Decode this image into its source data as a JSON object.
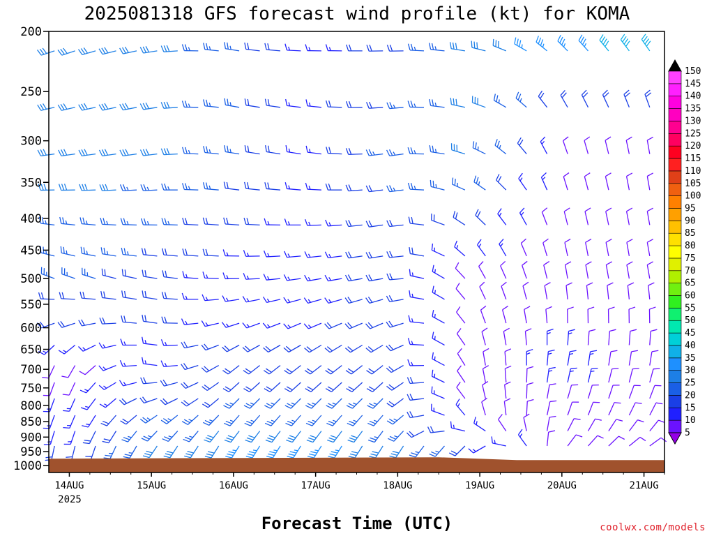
{
  "chart_data": {
    "type": "wind-barb-time-height",
    "title": "2025081318 GFS forecast wind profile (kt) for KOMA",
    "xlabel": "Forecast Time (UTC)",
    "ylabel": "",
    "credit": "coolwx.com/models",
    "y_axis": {
      "unit": "hPa",
      "scale": "log-pressure",
      "range": [
        200,
        1000
      ],
      "ticks": [
        "200",
        "250",
        "300",
        "350",
        "400",
        "450",
        "500",
        "550",
        "600",
        "650",
        "700",
        "750",
        "800",
        "850",
        "900",
        "950",
        "1000"
      ]
    },
    "x_axis": {
      "ticks": [
        "14AUG",
        "15AUG",
        "16AUG",
        "17AUG",
        "18AUG",
        "19AUG",
        "20AUG",
        "21AUG"
      ],
      "year_label": "2025",
      "range_days": [
        13.75,
        21.25
      ]
    },
    "colorbar": {
      "unit": "kt",
      "levels": [
        "5",
        "10",
        "15",
        "20",
        "25",
        "30",
        "35",
        "40",
        "45",
        "50",
        "55",
        "60",
        "65",
        "70",
        "75",
        "80",
        "85",
        "90",
        "95",
        "100",
        "105",
        "110",
        "115",
        "120",
        "125",
        "130",
        "135",
        "140",
        "145",
        "150"
      ],
      "colors": [
        "#9400e6",
        "#6b12ff",
        "#2020ff",
        "#1a3fe6",
        "#1a5fe6",
        "#1d7fe6",
        "#1e90ff",
        "#10b0e8",
        "#00d0d8",
        "#00e8b0",
        "#10f070",
        "#30f020",
        "#70f010",
        "#b0f000",
        "#e0f000",
        "#ffff00",
        "#ffe000",
        "#ffc000",
        "#ffa000",
        "#ff8000",
        "#f06010",
        "#e04018",
        "#ff2020",
        "#ff0020",
        "#ff0060",
        "#ff0090",
        "#ff00c0",
        "#ff00e0",
        "#ff20ff",
        "#ff40ff"
      ]
    },
    "terrain_color": "#a0522d",
    "surface_pressure_hPa": 975,
    "wind_profile_samples": [
      {
        "time": "14AUG00",
        "levels": [
          {
            "p": 200,
            "dir_deg": 250,
            "speed_kt": 30
          },
          {
            "p": 300,
            "dir_deg": 260,
            "speed_kt": 30
          },
          {
            "p": 500,
            "dir_deg": 290,
            "speed_kt": 25
          },
          {
            "p": 700,
            "dir_deg": 200,
            "speed_kt": 10
          },
          {
            "p": 850,
            "dir_deg": 200,
            "speed_kt": 15
          },
          {
            "p": 950,
            "dir_deg": 190,
            "speed_kt": 20
          }
        ]
      },
      {
        "time": "15AUG00",
        "levels": [
          {
            "p": 200,
            "dir_deg": 260,
            "speed_kt": 30
          },
          {
            "p": 300,
            "dir_deg": 260,
            "speed_kt": 30
          },
          {
            "p": 500,
            "dir_deg": 280,
            "speed_kt": 20
          },
          {
            "p": 700,
            "dir_deg": 280,
            "speed_kt": 15
          },
          {
            "p": 850,
            "dir_deg": 230,
            "speed_kt": 25
          },
          {
            "p": 950,
            "dir_deg": 210,
            "speed_kt": 30
          }
        ]
      },
      {
        "time": "16AUG00",
        "levels": [
          {
            "p": 200,
            "dir_deg": 280,
            "speed_kt": 25
          },
          {
            "p": 300,
            "dir_deg": 280,
            "speed_kt": 25
          },
          {
            "p": 500,
            "dir_deg": 270,
            "speed_kt": 15
          },
          {
            "p": 700,
            "dir_deg": 230,
            "speed_kt": 20
          },
          {
            "p": 850,
            "dir_deg": 220,
            "speed_kt": 25
          },
          {
            "p": 950,
            "dir_deg": 210,
            "speed_kt": 35
          }
        ]
      },
      {
        "time": "17AUG00",
        "levels": [
          {
            "p": 200,
            "dir_deg": 270,
            "speed_kt": 15
          },
          {
            "p": 300,
            "dir_deg": 280,
            "speed_kt": 15
          },
          {
            "p": 500,
            "dir_deg": 260,
            "speed_kt": 15
          },
          {
            "p": 700,
            "dir_deg": 230,
            "speed_kt": 20
          },
          {
            "p": 850,
            "dir_deg": 220,
            "speed_kt": 25
          },
          {
            "p": 950,
            "dir_deg": 210,
            "speed_kt": 40
          }
        ]
      },
      {
        "time": "18AUG00",
        "levels": [
          {
            "p": 200,
            "dir_deg": 270,
            "speed_kt": 20
          },
          {
            "p": 300,
            "dir_deg": 260,
            "speed_kt": 25
          },
          {
            "p": 500,
            "dir_deg": 260,
            "speed_kt": 20
          },
          {
            "p": 700,
            "dir_deg": 230,
            "speed_kt": 20
          },
          {
            "p": 850,
            "dir_deg": 220,
            "speed_kt": 25
          },
          {
            "p": 950,
            "dir_deg": 210,
            "speed_kt": 30
          }
        ]
      },
      {
        "time": "19AUG00",
        "levels": [
          {
            "p": 200,
            "dir_deg": 280,
            "speed_kt": 30
          },
          {
            "p": 300,
            "dir_deg": 290,
            "speed_kt": 30
          },
          {
            "p": 500,
            "dir_deg": 330,
            "speed_kt": 10
          },
          {
            "p": 700,
            "dir_deg": 350,
            "speed_kt": 10
          },
          {
            "p": 850,
            "dir_deg": 340,
            "speed_kt": 10
          },
          {
            "p": 950,
            "dir_deg": 200,
            "speed_kt": 20
          }
        ]
      },
      {
        "time": "20AUG00",
        "levels": [
          {
            "p": 200,
            "dir_deg": 310,
            "speed_kt": 40
          },
          {
            "p": 300,
            "dir_deg": 340,
            "speed_kt": 10
          },
          {
            "p": 500,
            "dir_deg": 350,
            "speed_kt": 10
          },
          {
            "p": 700,
            "dir_deg": 10,
            "speed_kt": 15
          },
          {
            "p": 850,
            "dir_deg": 20,
            "speed_kt": 10
          },
          {
            "p": 950,
            "dir_deg": 40,
            "speed_kt": 10
          }
        ]
      },
      {
        "time": "21AUG00",
        "levels": [
          {
            "p": 200,
            "dir_deg": 320,
            "speed_kt": 45
          },
          {
            "p": 300,
            "dir_deg": 350,
            "speed_kt": 10
          },
          {
            "p": 500,
            "dir_deg": 350,
            "speed_kt": 10
          },
          {
            "p": 700,
            "dir_deg": 10,
            "speed_kt": 10
          },
          {
            "p": 850,
            "dir_deg": 30,
            "speed_kt": 10
          },
          {
            "p": 950,
            "dir_deg": 60,
            "speed_kt": 10
          }
        ]
      }
    ]
  }
}
